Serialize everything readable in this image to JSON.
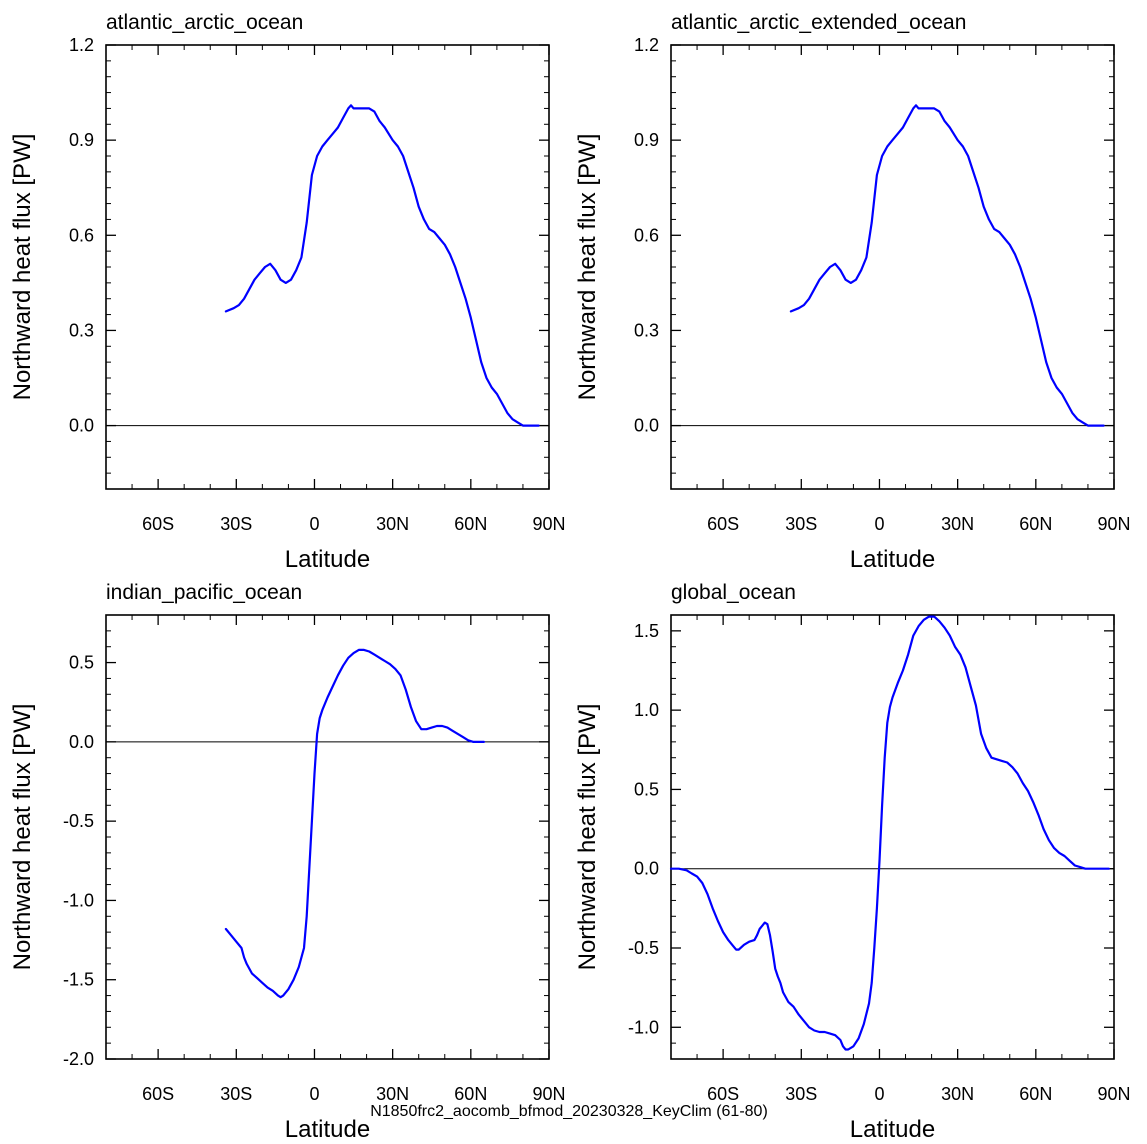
{
  "footer": {
    "text": "N1850frc2_aocomb_bfmod_20230328_KeyClim (61-80)",
    "color": "#0000ff"
  },
  "line_color": "#0000ff",
  "chart_data": [
    {
      "type": "line",
      "title": "atlantic_arctic_ocean",
      "xlabel": "Latitude",
      "ylabel": "Northward heat flux [PW]",
      "xlim": [
        -80,
        90
      ],
      "ylim": [
        -0.2,
        1.2
      ],
      "xticks": [
        -60,
        -30,
        0,
        30,
        60,
        90
      ],
      "xtick_labels": [
        "60S",
        "30S",
        "0",
        "30N",
        "60N",
        "90N"
      ],
      "yticks": [
        0.0,
        0.3,
        0.6,
        0.9,
        1.2
      ],
      "ytick_labels": [
        "0.0",
        "0.3",
        "0.6",
        "0.9",
        "1.2"
      ],
      "yminor_step": 0.05,
      "zero_line": true,
      "series": [
        {
          "x": [
            -34,
            -31,
            -29,
            -27,
            -25,
            -23,
            -21,
            -19,
            -17,
            -15,
            -13,
            -11,
            -9,
            -7,
            -5,
            -3,
            -1,
            1,
            3,
            5,
            7,
            9,
            11,
            13,
            14,
            15,
            17,
            19,
            21,
            23,
            25,
            27,
            30,
            32,
            34,
            36,
            38,
            40,
            42,
            44,
            46,
            48,
            50,
            52,
            54,
            56,
            58,
            60,
            62,
            64,
            66,
            68,
            70,
            72,
            74,
            76,
            78,
            80,
            82,
            84,
            86
          ],
          "y": [
            0.36,
            0.37,
            0.38,
            0.4,
            0.43,
            0.46,
            0.48,
            0.5,
            0.51,
            0.49,
            0.46,
            0.45,
            0.46,
            0.49,
            0.53,
            0.64,
            0.79,
            0.85,
            0.88,
            0.9,
            0.92,
            0.94,
            0.97,
            1.0,
            1.01,
            1.0,
            1.0,
            1.0,
            1.0,
            0.99,
            0.96,
            0.94,
            0.9,
            0.88,
            0.85,
            0.8,
            0.75,
            0.69,
            0.65,
            0.62,
            0.61,
            0.59,
            0.57,
            0.54,
            0.5,
            0.45,
            0.4,
            0.34,
            0.27,
            0.2,
            0.15,
            0.12,
            0.1,
            0.07,
            0.04,
            0.02,
            0.01,
            0.0,
            0.0,
            0.0,
            0.0
          ]
        }
      ]
    },
    {
      "type": "line",
      "title": "atlantic_arctic_extended_ocean",
      "xlabel": "Latitude",
      "ylabel": "Northward heat flux [PW]",
      "xlim": [
        -80,
        90
      ],
      "ylim": [
        -0.2,
        1.2
      ],
      "xticks": [
        -60,
        -30,
        0,
        30,
        60,
        90
      ],
      "xtick_labels": [
        "60S",
        "30S",
        "0",
        "30N",
        "60N",
        "90N"
      ],
      "yticks": [
        0.0,
        0.3,
        0.6,
        0.9,
        1.2
      ],
      "ytick_labels": [
        "0.0",
        "0.3",
        "0.6",
        "0.9",
        "1.2"
      ],
      "yminor_step": 0.05,
      "zero_line": true,
      "series": [
        {
          "x": [
            -34,
            -31,
            -29,
            -27,
            -25,
            -23,
            -21,
            -19,
            -17,
            -15,
            -13,
            -11,
            -9,
            -7,
            -5,
            -3,
            -1,
            1,
            3,
            5,
            7,
            9,
            11,
            13,
            14,
            15,
            17,
            19,
            21,
            23,
            25,
            27,
            30,
            32,
            34,
            36,
            38,
            40,
            42,
            44,
            46,
            48,
            50,
            52,
            54,
            56,
            58,
            60,
            62,
            64,
            66,
            68,
            70,
            72,
            74,
            76,
            78,
            80,
            82,
            84,
            86
          ],
          "y": [
            0.36,
            0.37,
            0.38,
            0.4,
            0.43,
            0.46,
            0.48,
            0.5,
            0.51,
            0.49,
            0.46,
            0.45,
            0.46,
            0.49,
            0.53,
            0.64,
            0.79,
            0.85,
            0.88,
            0.9,
            0.92,
            0.94,
            0.97,
            1.0,
            1.01,
            1.0,
            1.0,
            1.0,
            1.0,
            0.99,
            0.96,
            0.94,
            0.9,
            0.88,
            0.85,
            0.8,
            0.75,
            0.69,
            0.65,
            0.62,
            0.61,
            0.59,
            0.57,
            0.54,
            0.5,
            0.45,
            0.4,
            0.34,
            0.27,
            0.2,
            0.15,
            0.12,
            0.1,
            0.07,
            0.04,
            0.02,
            0.01,
            0.0,
            0.0,
            0.0,
            0.0
          ]
        }
      ]
    },
    {
      "type": "line",
      "title": "indian_pacific_ocean",
      "xlabel": "Latitude",
      "ylabel": "Northward heat flux [PW]",
      "xlim": [
        -80,
        90
      ],
      "ylim": [
        -2.0,
        0.8
      ],
      "xticks": [
        -60,
        -30,
        0,
        30,
        60,
        90
      ],
      "xtick_labels": [
        "60S",
        "30S",
        "0",
        "30N",
        "60N",
        "90N"
      ],
      "yticks": [
        -2.0,
        -1.5,
        -1.0,
        -0.5,
        0.0,
        0.5
      ],
      "ytick_labels": [
        "-2.0",
        "-1.5",
        "-1.0",
        "-0.5",
        "0.0",
        "0.5"
      ],
      "yminor_step": 0.1,
      "zero_line": true,
      "series": [
        {
          "x": [
            -34,
            -32,
            -30,
            -28,
            -27,
            -26,
            -24,
            -22,
            -20,
            -18,
            -16,
            -14,
            -13,
            -12,
            -10,
            -8,
            -6,
            -4,
            -3,
            -2,
            -1,
            0,
            1,
            2,
            3,
            5,
            7,
            9,
            11,
            13,
            15,
            17,
            19,
            21,
            23,
            25,
            27,
            29,
            31,
            33,
            35,
            37,
            39,
            41,
            43,
            45,
            47,
            49,
            51,
            53,
            55,
            57,
            59,
            61,
            63,
            65
          ],
          "y": [
            -1.18,
            -1.22,
            -1.26,
            -1.3,
            -1.36,
            -1.4,
            -1.46,
            -1.49,
            -1.52,
            -1.55,
            -1.57,
            -1.6,
            -1.61,
            -1.6,
            -1.56,
            -1.5,
            -1.42,
            -1.3,
            -1.1,
            -0.8,
            -0.5,
            -0.2,
            0.05,
            0.15,
            0.2,
            0.28,
            0.35,
            0.42,
            0.48,
            0.53,
            0.56,
            0.58,
            0.58,
            0.57,
            0.55,
            0.53,
            0.51,
            0.49,
            0.46,
            0.42,
            0.33,
            0.22,
            0.13,
            0.08,
            0.08,
            0.09,
            0.1,
            0.1,
            0.09,
            0.07,
            0.05,
            0.03,
            0.01,
            0.0,
            0.0,
            0.0
          ]
        }
      ]
    },
    {
      "type": "line",
      "title": "global_ocean",
      "xlabel": "Latitude",
      "ylabel": "Northward heat flux [PW]",
      "xlim": [
        -80,
        90
      ],
      "ylim": [
        -1.2,
        1.6
      ],
      "xticks": [
        -60,
        -30,
        0,
        30,
        60,
        90
      ],
      "xtick_labels": [
        "60S",
        "30S",
        "0",
        "30N",
        "60N",
        "90N"
      ],
      "yticks": [
        -1.0,
        -0.5,
        0.0,
        0.5,
        1.0,
        1.5
      ],
      "ytick_labels": [
        "-1.0",
        "-0.5",
        "0.0",
        "0.5",
        "1.0",
        "1.5"
      ],
      "yminor_step": 0.1,
      "zero_line": true,
      "series": [
        {
          "x": [
            -80,
            -77,
            -74,
            -72,
            -70,
            -68,
            -66,
            -64,
            -62,
            -60,
            -58,
            -56,
            -55,
            -54,
            -52,
            -50,
            -48,
            -47,
            -46,
            -45,
            -44,
            -43,
            -42,
            -41,
            -40,
            -39,
            -38,
            -37,
            -35,
            -33,
            -31,
            -29,
            -27,
            -25,
            -23,
            -21,
            -19,
            -17,
            -15,
            -14,
            -13,
            -12,
            -10,
            -8,
            -6,
            -4,
            -3,
            -2,
            -1,
            0,
            1,
            2,
            3,
            4,
            5,
            7,
            9,
            11,
            13,
            15,
            17,
            19,
            21,
            23,
            25,
            27,
            29,
            31,
            33,
            35,
            37,
            39,
            41,
            43,
            45,
            47,
            49,
            51,
            53,
            55,
            57,
            59,
            61,
            63,
            65,
            67,
            69,
            71,
            73,
            75,
            77,
            79,
            81,
            83,
            85,
            88
          ],
          "y": [
            0.0,
            0.0,
            -0.01,
            -0.03,
            -0.05,
            -0.09,
            -0.16,
            -0.25,
            -0.33,
            -0.4,
            -0.45,
            -0.49,
            -0.51,
            -0.51,
            -0.48,
            -0.46,
            -0.45,
            -0.42,
            -0.38,
            -0.36,
            -0.34,
            -0.35,
            -0.42,
            -0.52,
            -0.63,
            -0.68,
            -0.72,
            -0.78,
            -0.84,
            -0.87,
            -0.92,
            -0.96,
            -1.0,
            -1.02,
            -1.03,
            -1.03,
            -1.04,
            -1.05,
            -1.08,
            -1.12,
            -1.14,
            -1.14,
            -1.12,
            -1.07,
            -0.98,
            -0.85,
            -0.72,
            -0.5,
            -0.25,
            0.05,
            0.4,
            0.7,
            0.92,
            1.02,
            1.08,
            1.17,
            1.25,
            1.35,
            1.47,
            1.53,
            1.57,
            1.59,
            1.59,
            1.56,
            1.52,
            1.47,
            1.4,
            1.35,
            1.27,
            1.15,
            1.03,
            0.85,
            0.76,
            0.7,
            0.69,
            0.68,
            0.67,
            0.64,
            0.6,
            0.54,
            0.49,
            0.42,
            0.34,
            0.25,
            0.18,
            0.13,
            0.1,
            0.08,
            0.05,
            0.02,
            0.01,
            0.0,
            0.0,
            0.0,
            0.0,
            0.0
          ]
        }
      ]
    }
  ]
}
